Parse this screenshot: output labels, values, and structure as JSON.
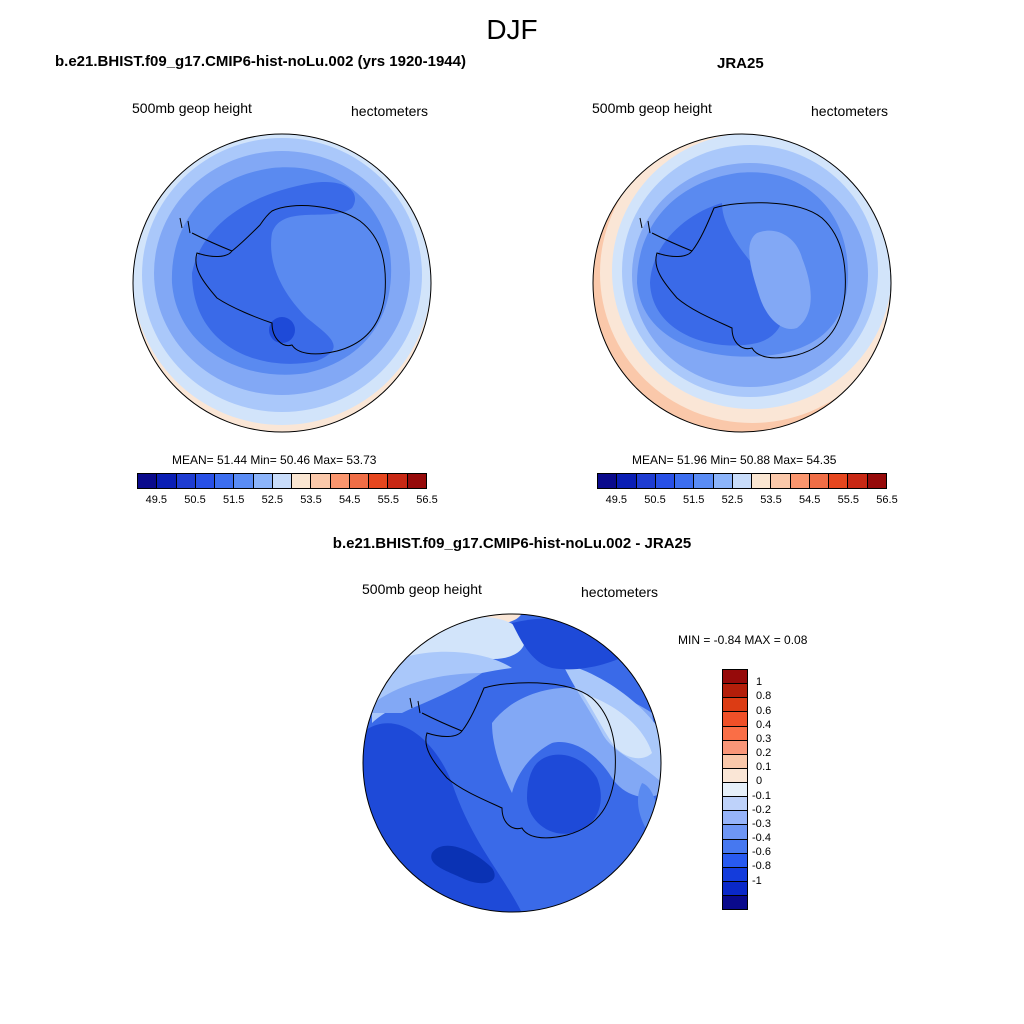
{
  "figure": {
    "title": "DJF"
  },
  "panels": [
    {
      "title": "b.e21.BHIST.f09_g17.CMIP6-hist-noLu.002 (yrs 1920-1944)",
      "left_label": "500mb geop height",
      "right_label": "hectometers",
      "stats": "MEAN=  51.44  Min=  50.46  Max=  53.73"
    },
    {
      "title": "JRA25",
      "left_label": "500mb geop height",
      "right_label": "hectometers",
      "stats": "MEAN=  51.96  Min=  50.88  Max=  54.35"
    },
    {
      "title": "b.e21.BHIST.f09_g17.CMIP6-hist-noLu.002 - JRA25",
      "left_label": "500mb geop height",
      "right_label": "hectometers",
      "stats": "MIN =  -0.84 MAX =   0.08"
    }
  ],
  "colorbar_abs": {
    "colors": [
      "#0a0a8c",
      "#0a1eb4",
      "#1e3cd2",
      "#2850e6",
      "#3c6ef0",
      "#5a8cf5",
      "#8cb4fa",
      "#c8dcfa",
      "#fae6d2",
      "#fac8aa",
      "#fa966e",
      "#f06e46",
      "#e6461e",
      "#c82814",
      "#960a0a"
    ],
    "tick_labels": [
      "49.5",
      "50.5",
      "51.5",
      "52.5",
      "53.5",
      "54.5",
      "55.5",
      "56.5"
    ]
  },
  "colorbar_diff": {
    "colors_top_to_bottom": [
      "#960a0a",
      "#b41e0a",
      "#dc3c14",
      "#f05028",
      "#fa6e46",
      "#fa9678",
      "#fac8aa",
      "#fae6d6",
      "#e6f0fa",
      "#bed2fa",
      "#96b4fa",
      "#6e96f5",
      "#4678f0",
      "#285af0",
      "#143cdc",
      "#0a28c8",
      "#0a0a8c"
    ],
    "tick_labels": [
      "1",
      "0.8",
      "0.6",
      "0.4",
      "0.3",
      "0.2",
      "0.1",
      "0",
      "-0.1",
      "-0.2",
      "-0.3",
      "-0.4",
      "-0.6",
      "-0.8",
      "-1"
    ]
  },
  "map_colors": {
    "peach": "#fae6d6",
    "very_light_blue": "#d2e4fa",
    "light_blue": "#aac8fa",
    "mid_blue": "#82a8f5",
    "blue": "#5a8af0",
    "strong_blue": "#3a6ae8",
    "deep_blue": "#1e4ad8",
    "darkest_blue": "#0a32b4",
    "coast": "#000000"
  }
}
